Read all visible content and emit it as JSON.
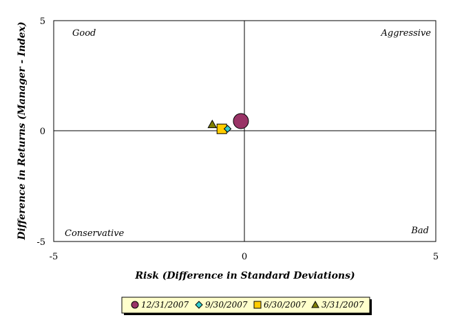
{
  "chart_data": {
    "type": "scatter",
    "title": "",
    "xlabel": "Risk (Difference in Standard Deviations)",
    "ylabel": "Difference in Returns (Manager - Index)",
    "xlim": [
      -5,
      5
    ],
    "ylim": [
      -5,
      5
    ],
    "x_ticks": [
      "-5",
      "0",
      "5"
    ],
    "y_ticks": [
      "-5",
      "0",
      "5"
    ],
    "grid": false,
    "quadrant_labels": {
      "top_left": "Good",
      "top_right": "Aggressive",
      "bottom_left": "Conservative",
      "bottom_right": "Bad"
    },
    "legend_position": "bottom",
    "series": [
      {
        "name": "12/31/2007",
        "marker": "circle",
        "color": "#993366",
        "x": -0.1,
        "y": 0.45
      },
      {
        "name": "9/30/2007",
        "marker": "diamond",
        "color": "#33CCCC",
        "x": -0.45,
        "y": 0.1
      },
      {
        "name": "6/30/2007",
        "marker": "square",
        "color": "#FFCC00",
        "x": -0.6,
        "y": 0.1
      },
      {
        "name": "3/31/2007",
        "marker": "triangle",
        "color": "#808000",
        "x": -0.85,
        "y": 0.3
      }
    ]
  }
}
